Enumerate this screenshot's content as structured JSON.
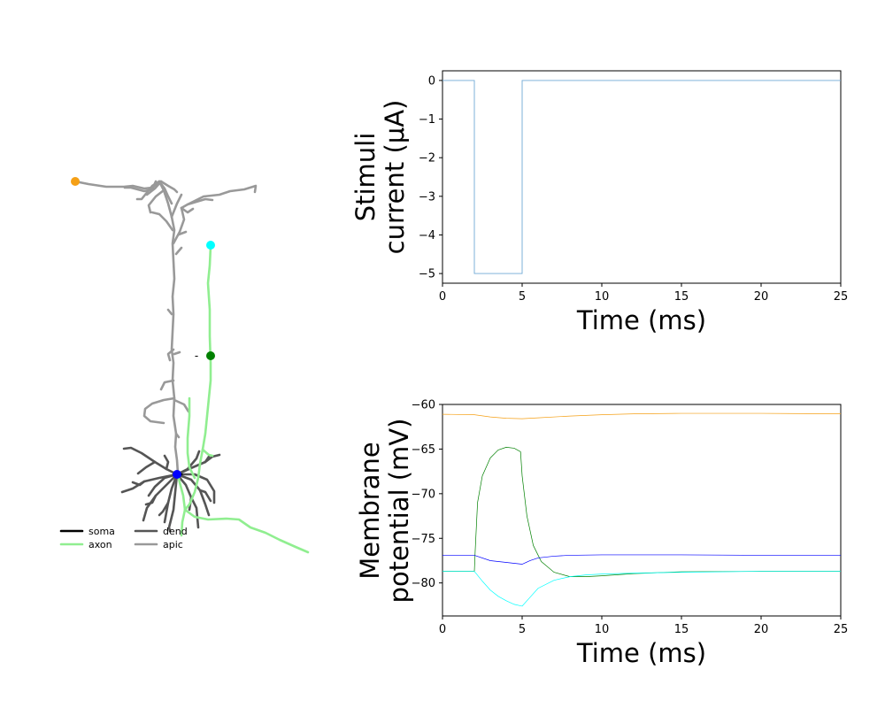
{
  "morphology": {
    "legend": [
      {
        "label": "soma",
        "color": "#000000"
      },
      {
        "label": "axon",
        "color": "#90ee90"
      },
      {
        "label": "dend",
        "color": "#555555"
      },
      {
        "label": "apic",
        "color": "#999999"
      }
    ],
    "markers": [
      {
        "name": "apical-tuft-recording-marker",
        "color": "#f5a016"
      },
      {
        "name": "axon-distal-recording-marker",
        "color": "#00ffff"
      },
      {
        "name": "axon-mid-recording-marker",
        "color": "#008000"
      },
      {
        "name": "soma-recording-marker",
        "color": "#0000ff"
      }
    ],
    "stimulus_tick": "-"
  },
  "chart_data": [
    {
      "type": "line",
      "name": "stimulus",
      "xlabel": "Time (ms)",
      "ylabel_lines": [
        "Stimuli",
        "current (μA)"
      ],
      "xlim": [
        0,
        25
      ],
      "ylim": [
        -5.25,
        0.25
      ],
      "xticks": [
        0,
        5,
        10,
        15,
        20,
        25
      ],
      "yticks": [
        0,
        -1,
        -2,
        -3,
        -4,
        -5
      ],
      "ytick_labels": [
        "0",
        "−1",
        "−2",
        "−3",
        "−4",
        "−5"
      ],
      "grid": false,
      "series": [
        {
          "color": "#6fa8d6",
          "x": [
            0,
            2,
            2,
            5,
            5,
            25
          ],
          "y": [
            0,
            0,
            -5,
            -5,
            0,
            0
          ]
        }
      ]
    },
    {
      "type": "line",
      "name": "membrane",
      "xlabel": "Time (ms)",
      "ylabel_lines": [
        "Membrane",
        "potential (mV)"
      ],
      "xlim": [
        0,
        25
      ],
      "ylim": [
        -83.7,
        -60
      ],
      "xticks": [
        0,
        5,
        10,
        15,
        20,
        25
      ],
      "yticks": [
        -60,
        -65,
        -70,
        -75,
        -80
      ],
      "ytick_labels": [
        "−60",
        "−65",
        "−70",
        "−75",
        "−80"
      ],
      "grid": false,
      "series": [
        {
          "color": "#f5a016",
          "x": [
            0,
            2,
            3,
            4,
            5,
            6,
            8,
            10,
            12,
            15,
            20,
            25
          ],
          "y": [
            -61.1,
            -61.15,
            -61.4,
            -61.55,
            -61.6,
            -61.5,
            -61.3,
            -61.15,
            -61.05,
            -61.0,
            -61.0,
            -61.05
          ]
        },
        {
          "color": "#008000",
          "x": [
            0,
            2,
            2.05,
            2.2,
            2.5,
            3,
            3.5,
            4,
            4.5,
            4.9,
            5,
            5.3,
            5.7,
            6.2,
            7,
            8,
            9,
            10,
            12,
            15,
            20,
            25
          ],
          "y": [
            -78.7,
            -78.7,
            -76.5,
            -71.0,
            -68.0,
            -66.0,
            -65.1,
            -64.8,
            -64.9,
            -65.3,
            -68.0,
            -72.5,
            -75.8,
            -77.6,
            -78.8,
            -79.3,
            -79.3,
            -79.2,
            -78.95,
            -78.75,
            -78.7,
            -78.7
          ]
        },
        {
          "color": "#0000ff",
          "x": [
            0,
            2,
            3,
            4,
            5,
            5.5,
            6,
            7,
            8,
            10,
            12,
            15,
            20,
            25
          ],
          "y": [
            -76.9,
            -76.9,
            -77.5,
            -77.7,
            -77.9,
            -77.5,
            -77.2,
            -77.0,
            -76.9,
            -76.85,
            -76.85,
            -76.85,
            -76.9,
            -76.9
          ]
        },
        {
          "color": "#00ffff",
          "x": [
            0,
            2,
            2.5,
            3,
            3.5,
            4,
            4.5,
            5,
            5.5,
            6,
            7,
            8,
            9,
            10,
            12,
            15,
            20,
            25
          ],
          "y": [
            -78.7,
            -78.7,
            -79.8,
            -80.8,
            -81.5,
            -82.0,
            -82.4,
            -82.6,
            -81.6,
            -80.6,
            -79.7,
            -79.3,
            -79.1,
            -79.0,
            -78.9,
            -78.8,
            -78.7,
            -78.7
          ]
        }
      ]
    }
  ]
}
